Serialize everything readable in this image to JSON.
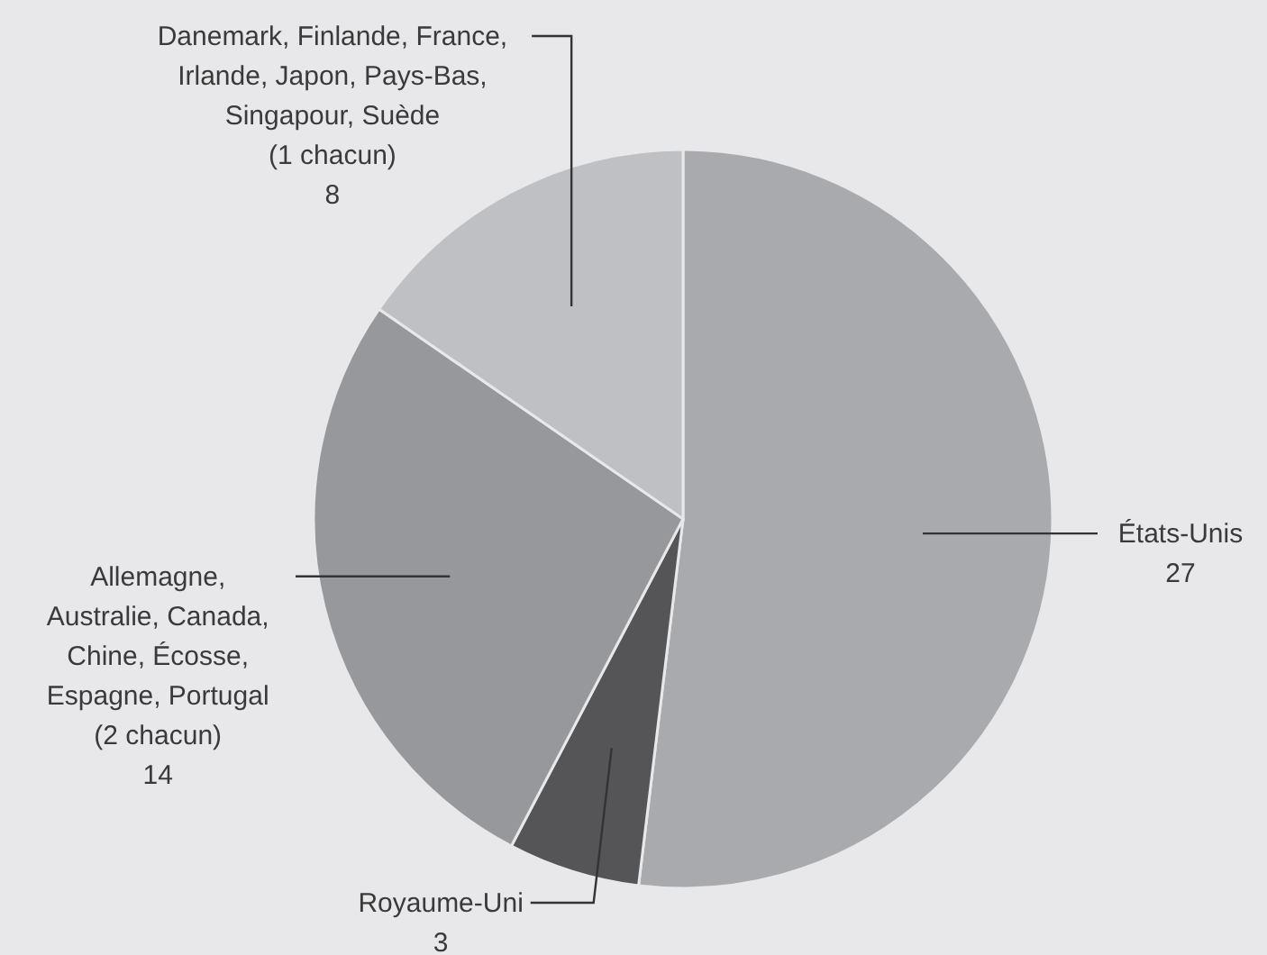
{
  "chart_data": {
    "type": "pie",
    "categories": [
      "États-Unis",
      "Royaume-Uni",
      "Allemagne, Australie, Canada, Chine, Écosse, Espagne, Portugal (2 chacun)",
      "Danemark, Finlande, France, Irlande, Japon, Pays-Bas, Singapour, Suède (1 chacun)"
    ],
    "values": [
      27,
      3,
      14,
      8
    ],
    "colors": [
      "#a9aaad",
      "#555558",
      "#97989b",
      "#bfc0c3"
    ],
    "data_labels": true,
    "legend": false
  }
}
